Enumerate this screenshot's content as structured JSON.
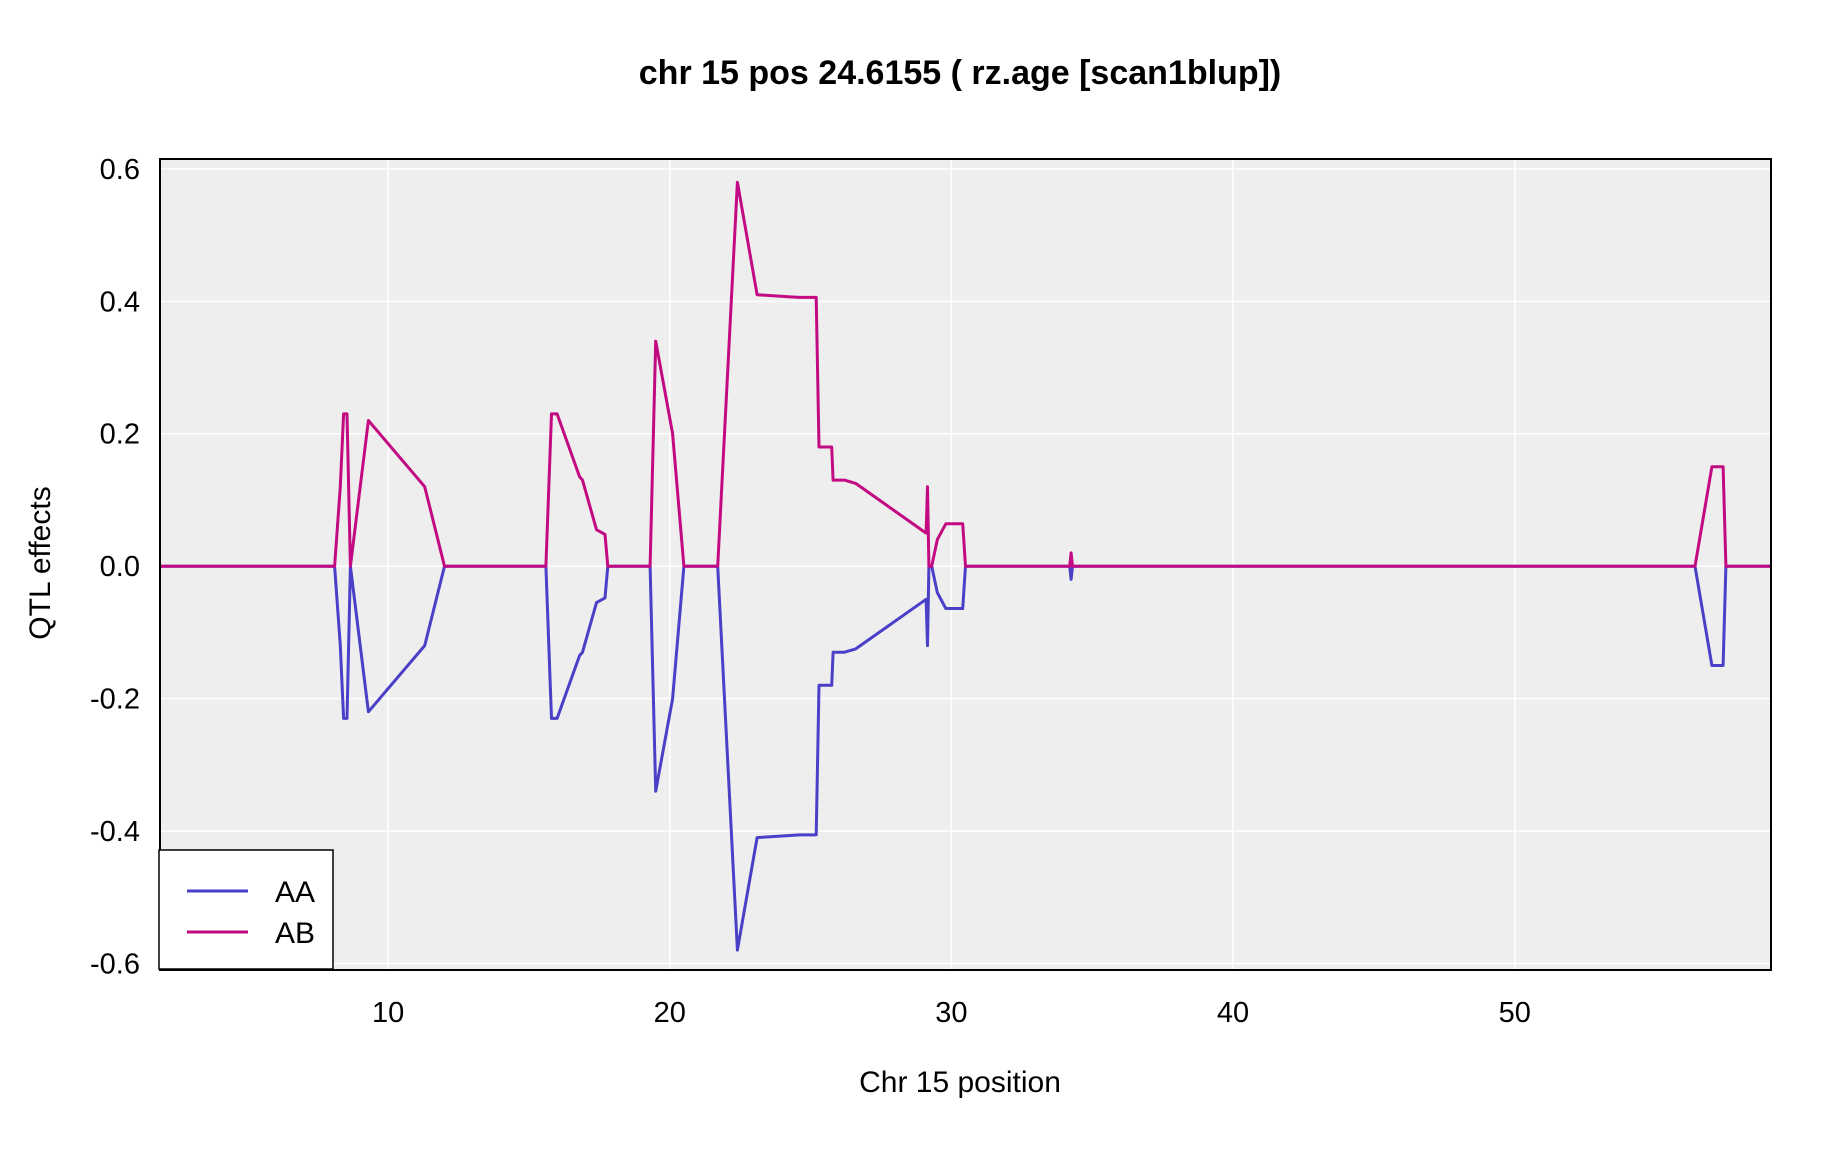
{
  "chart_data": {
    "type": "line",
    "title": "chr 15 pos 24.6155 ( rz.age  [scan1blup])",
    "xlabel": "Chr 15 position",
    "ylabel": "QTL effects",
    "xlim": [
      1.9,
      59.1
    ],
    "ylim": [
      -0.61,
      0.615
    ],
    "xticks": [
      10,
      20,
      30,
      40,
      50
    ],
    "xtick_labels": [
      "10",
      "20",
      "30",
      "40",
      "50"
    ],
    "yticks": [
      -0.6,
      -0.4,
      -0.2,
      0.0,
      0.2,
      0.4,
      0.6
    ],
    "ytick_labels": [
      "-0.6",
      "-0.4",
      "-0.2",
      "0.0",
      "0.2",
      "0.4",
      "0.6"
    ],
    "grid": true,
    "background": "#eeeeee",
    "legend_position": "bottom-left",
    "x": [
      1.9,
      8.1,
      8.3,
      8.42,
      8.54,
      8.66,
      9.3,
      11.3,
      12.0,
      15.6,
      15.8,
      16.0,
      16.8,
      16.9,
      17.4,
      17.7,
      17.8,
      19.3,
      19.5,
      20.1,
      20.5,
      21.7,
      22.4,
      23.1,
      24.2,
      24.6,
      25.2,
      25.3,
      25.75,
      25.8,
      26.2,
      26.6,
      29.1,
      29.15,
      29.2,
      29.3,
      29.5,
      29.8,
      30.1,
      30.4,
      30.5,
      34.2,
      34.25,
      34.3,
      34.35,
      56.4,
      57.0,
      57.4,
      57.5,
      59.1
    ],
    "series": [
      {
        "name": "AA",
        "color": "#4a3fc7",
        "values": [
          0,
          0,
          -0.12,
          -0.23,
          -0.23,
          0,
          -0.22,
          -0.12,
          0,
          0,
          -0.23,
          -0.23,
          -0.135,
          -0.13,
          -0.055,
          -0.048,
          0,
          0,
          -0.34,
          -0.2,
          0,
          0,
          -0.58,
          -0.41,
          -0.407,
          -0.406,
          -0.406,
          -0.18,
          -0.18,
          -0.13,
          -0.13,
          -0.125,
          -0.05,
          -0.12,
          0,
          0,
          -0.04,
          -0.064,
          -0.064,
          -0.064,
          0,
          0,
          -0.02,
          0,
          0,
          0,
          -0.15,
          -0.15,
          0,
          0
        ]
      },
      {
        "name": "AB",
        "color": "#c20a82",
        "values": [
          0,
          0,
          0.12,
          0.23,
          0.23,
          0,
          0.22,
          0.12,
          0,
          0,
          0.23,
          0.23,
          0.135,
          0.13,
          0.055,
          0.048,
          0,
          0,
          0.34,
          0.2,
          0,
          0,
          0.58,
          0.41,
          0.407,
          0.406,
          0.406,
          0.18,
          0.18,
          0.13,
          0.13,
          0.125,
          0.05,
          0.12,
          0,
          0,
          0.04,
          0.064,
          0.064,
          0.064,
          0,
          0,
          0.02,
          0,
          0,
          0,
          0.15,
          0.15,
          0,
          0
        ]
      }
    ]
  }
}
